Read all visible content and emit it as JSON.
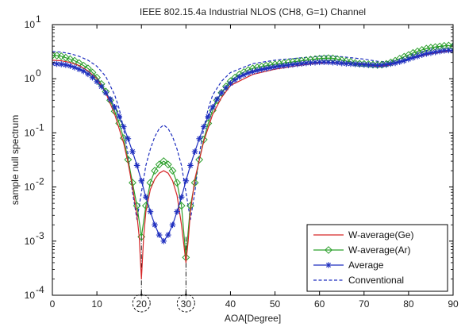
{
  "chart_data": {
    "type": "line",
    "title": "IEEE 802.15.4a Industrial NLOS (CH8, G=1) Channel",
    "xlabel": "AOA[Degree]",
    "ylabel": "sample null spectrum",
    "xlim": [
      0,
      90
    ],
    "ylim": [
      0.0001,
      10
    ],
    "y_scale": "log",
    "x_ticks": [
      "0",
      "10",
      "20",
      "30",
      "40",
      "50",
      "60",
      "70",
      "80",
      "90"
    ],
    "y_ticks": [
      {
        "value": 10,
        "base": "10",
        "exp": "1"
      },
      {
        "value": 1,
        "base": "10",
        "exp": "0"
      },
      {
        "value": 0.1,
        "base": "10",
        "exp": "-1"
      },
      {
        "value": 0.01,
        "base": "10",
        "exp": "-2"
      },
      {
        "value": 0.001,
        "base": "10",
        "exp": "-3"
      },
      {
        "value": 0.0001,
        "base": "10",
        "exp": "-4"
      }
    ],
    "grid": false,
    "legend_position": "bottom-right",
    "annotations": [
      "dashed circles around x=20 and x=30 at the x-axis, with dash-dot guide lines at the two null angles"
    ],
    "null_angles": [
      20,
      30
    ],
    "series": [
      {
        "name": "W-average(Ge)",
        "color": "#d62728",
        "line_style": "solid",
        "marker": "none",
        "x": [
          0,
          2,
          4,
          6,
          8,
          10,
          12,
          14,
          16,
          17,
          18,
          19,
          19.5,
          20,
          20.5,
          21,
          22,
          23,
          24,
          25,
          26,
          27,
          28,
          29,
          29.5,
          30,
          30.5,
          31,
          32,
          34,
          36,
          38,
          40,
          45,
          50,
          55,
          60,
          62,
          65,
          70,
          73,
          75,
          78,
          80,
          85,
          90
        ],
        "values": [
          2.2,
          2.15,
          2.0,
          1.75,
          1.4,
          1.0,
          0.55,
          0.22,
          0.065,
          0.028,
          0.01,
          0.003,
          0.0012,
          0.0002,
          0.0012,
          0.0035,
          0.009,
          0.014,
          0.018,
          0.02,
          0.018,
          0.013,
          0.007,
          0.002,
          0.0009,
          0.0004,
          0.001,
          0.0035,
          0.014,
          0.07,
          0.22,
          0.45,
          0.75,
          1.2,
          1.5,
          1.75,
          1.95,
          2.0,
          1.9,
          1.85,
          1.7,
          1.75,
          2.0,
          2.3,
          2.9,
          3.3
        ]
      },
      {
        "name": "W-average(Ar)",
        "color": "#2ca02c",
        "line_style": "solid",
        "marker": "diamond",
        "x": [
          0,
          1,
          2,
          3,
          4,
          5,
          6,
          7,
          8,
          9,
          10,
          11,
          12,
          13,
          14,
          15,
          16,
          17,
          18,
          19,
          20,
          21,
          22,
          23,
          24,
          25,
          26,
          27,
          28,
          29,
          30,
          31,
          32,
          33,
          34,
          35,
          36,
          37,
          38,
          39,
          40,
          41,
          42,
          43,
          44,
          45,
          46,
          47,
          48,
          49,
          50,
          51,
          52,
          53,
          54,
          55,
          56,
          57,
          58,
          59,
          60,
          61,
          62,
          63,
          64,
          65,
          66,
          67,
          68,
          69,
          70,
          71,
          72,
          73,
          74,
          75,
          76,
          77,
          78,
          79,
          80,
          81,
          82,
          83,
          84,
          85,
          86,
          87,
          88,
          89,
          90
        ],
        "values": [
          2.7,
          2.68,
          2.6,
          2.45,
          2.3,
          2.15,
          1.95,
          1.75,
          1.55,
          1.3,
          1.05,
          0.8,
          0.58,
          0.4,
          0.25,
          0.15,
          0.08,
          0.032,
          0.012,
          0.0045,
          0.0012,
          0.0045,
          0.012,
          0.02,
          0.026,
          0.03,
          0.026,
          0.02,
          0.012,
          0.0045,
          0.0005,
          0.0045,
          0.012,
          0.032,
          0.075,
          0.15,
          0.26,
          0.4,
          0.55,
          0.72,
          0.9,
          1.05,
          1.2,
          1.33,
          1.45,
          1.55,
          1.62,
          1.68,
          1.74,
          1.8,
          1.85,
          1.9,
          1.95,
          2.0,
          2.05,
          2.1,
          2.15,
          2.2,
          2.25,
          2.3,
          2.35,
          2.38,
          2.4,
          2.38,
          2.3,
          2.2,
          2.12,
          2.05,
          1.95,
          1.9,
          1.88,
          1.85,
          1.82,
          1.8,
          1.82,
          1.88,
          2.0,
          2.15,
          2.35,
          2.55,
          2.75,
          3.0,
          3.2,
          3.4,
          3.6,
          3.75,
          3.85,
          3.95,
          4.05,
          4.1,
          4.0
        ]
      },
      {
        "name": "Average",
        "color": "#1f2fbf",
        "line_style": "solid",
        "marker": "asterisk",
        "x": [
          0,
          1,
          2,
          3,
          4,
          5,
          6,
          7,
          8,
          9,
          10,
          11,
          12,
          13,
          14,
          15,
          16,
          17,
          18,
          19,
          20,
          21,
          22,
          23,
          24,
          25,
          26,
          27,
          28,
          29,
          30,
          31,
          32,
          33,
          34,
          35,
          36,
          37,
          38,
          39,
          40,
          41,
          42,
          43,
          44,
          45,
          46,
          47,
          48,
          49,
          50,
          51,
          52,
          53,
          54,
          55,
          56,
          57,
          58,
          59,
          60,
          61,
          62,
          63,
          64,
          65,
          66,
          67,
          68,
          69,
          70,
          71,
          72,
          73,
          74,
          75,
          76,
          77,
          78,
          79,
          80,
          81,
          82,
          83,
          84,
          85,
          86,
          87,
          88,
          89,
          90
        ],
        "values": [
          1.9,
          1.88,
          1.85,
          1.8,
          1.72,
          1.62,
          1.5,
          1.38,
          1.22,
          1.05,
          0.88,
          0.72,
          0.55,
          0.42,
          0.3,
          0.2,
          0.13,
          0.078,
          0.045,
          0.025,
          0.013,
          0.0065,
          0.0035,
          0.002,
          0.0013,
          0.001,
          0.0013,
          0.002,
          0.0035,
          0.0065,
          0.013,
          0.025,
          0.045,
          0.078,
          0.13,
          0.2,
          0.3,
          0.42,
          0.55,
          0.68,
          0.82,
          0.95,
          1.08,
          1.18,
          1.28,
          1.35,
          1.42,
          1.48,
          1.54,
          1.6,
          1.65,
          1.7,
          1.74,
          1.78,
          1.82,
          1.86,
          1.9,
          1.94,
          1.97,
          2.0,
          2.02,
          2.03,
          2.02,
          2.0,
          1.97,
          1.93,
          1.9,
          1.88,
          1.86,
          1.84,
          1.82,
          1.8,
          1.78,
          1.77,
          1.78,
          1.82,
          1.88,
          1.95,
          2.05,
          2.15,
          2.3,
          2.45,
          2.6,
          2.75,
          2.9,
          3.0,
          3.1,
          3.2,
          3.3,
          3.35,
          3.3
        ]
      },
      {
        "name": "Conventional",
        "color": "#1f2fbf",
        "line_style": "dashed",
        "marker": "none",
        "x": [
          0,
          2,
          4,
          6,
          8,
          10,
          12,
          14,
          15,
          16,
          17,
          18,
          19,
          20,
          21,
          22,
          23,
          24,
          25,
          26,
          27,
          28,
          29,
          30,
          31,
          32,
          33,
          34,
          35,
          36,
          38,
          40,
          45,
          50,
          55,
          60,
          62,
          65,
          68,
          70,
          73,
          75,
          78,
          80,
          85,
          90
        ],
        "values": [
          3.2,
          3.1,
          2.9,
          2.6,
          2.2,
          1.7,
          1.1,
          0.5,
          0.28,
          0.12,
          0.04,
          0.008,
          0.0025,
          0.008,
          0.025,
          0.05,
          0.085,
          0.12,
          0.14,
          0.12,
          0.085,
          0.05,
          0.025,
          0.008,
          0.0025,
          0.008,
          0.04,
          0.12,
          0.28,
          0.5,
          0.9,
          1.3,
          1.9,
          2.2,
          2.4,
          2.6,
          2.65,
          2.55,
          2.4,
          2.3,
          2.1,
          2.05,
          2.3,
          2.7,
          3.5,
          4.3
        ]
      }
    ]
  }
}
